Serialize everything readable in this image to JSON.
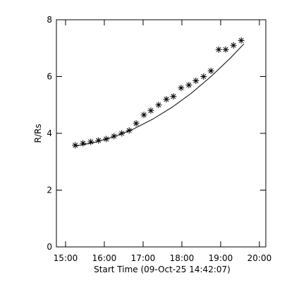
{
  "chart_data": {
    "type": "scatter",
    "x_label": "Start Time (09-Oct-25 14:42:07)",
    "y_label": "R/Rs",
    "xlim": [
      14.764,
      20.164
    ],
    "xticks": [
      {
        "value": 15,
        "label": "15:00"
      },
      {
        "value": 16,
        "label": "16:00"
      },
      {
        "value": 17,
        "label": "17:00"
      },
      {
        "value": 18,
        "label": "18:00"
      },
      {
        "value": 19,
        "label": "19:00"
      },
      {
        "value": 20,
        "label": "20:00"
      }
    ],
    "ylim": [
      0,
      8
    ],
    "yticks": [
      0,
      2,
      4,
      6,
      8
    ],
    "series": [
      {
        "marker": "asterisk",
        "color": "#000000",
        "x": [
          15.25,
          15.45,
          15.65,
          15.85,
          16.05,
          16.25,
          16.45,
          16.64,
          16.82,
          17.02,
          17.2,
          17.4,
          17.6,
          17.78,
          17.98,
          18.18,
          18.36,
          18.56,
          18.75,
          18.95,
          19.13,
          19.33,
          19.53
        ],
        "values": [
          3.58,
          3.65,
          3.7,
          3.75,
          3.8,
          3.9,
          4.0,
          4.1,
          4.35,
          4.65,
          4.8,
          5.0,
          5.2,
          5.3,
          5.6,
          5.7,
          5.85,
          6.0,
          6.2,
          6.95,
          6.95,
          7.1,
          7.27
        ]
      },
      {
        "marker": "line",
        "color": "#000000",
        "x": [
          15.25,
          15.75,
          16.25,
          16.75,
          17.25,
          17.75,
          18.25,
          18.75,
          19.25,
          19.6
        ],
        "values": [
          3.55,
          3.68,
          3.88,
          4.15,
          4.5,
          4.92,
          5.42,
          6.0,
          6.65,
          7.15
        ]
      }
    ]
  }
}
